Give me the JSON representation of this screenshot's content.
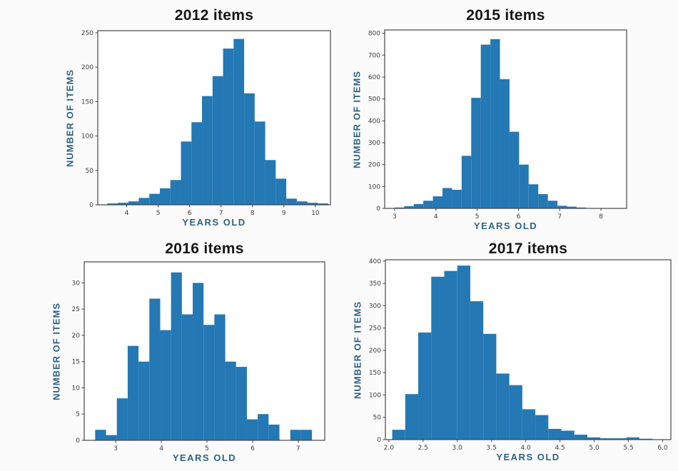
{
  "figure": {
    "layout": "2x2 grid of histograms",
    "background": "#fbfbfb"
  },
  "colors": {
    "bar_fill": "#2478b4",
    "spine": "#454545",
    "tick_label": "#3d3d3d",
    "axis_label": "#2e6285",
    "title": "#161616",
    "plot_background": "#ffffff"
  },
  "chart_data": [
    {
      "id": "2012",
      "type": "bar",
      "title": "2012 items",
      "xlabel": "YEARS OLD",
      "ylabel": "NUMBER OF ITEMS",
      "bin_start": 3.38,
      "bin_width": 0.335,
      "values": [
        2,
        3,
        5,
        10,
        16,
        24,
        36,
        92,
        120,
        158,
        187,
        227,
        241,
        162,
        121,
        65,
        38,
        9,
        5,
        3,
        2
      ],
      "xlim": [
        3.08,
        10.48
      ],
      "ylim": [
        0,
        253
      ],
      "xticks": [
        4,
        5,
        6,
        7,
        8,
        9,
        10
      ],
      "xtick_labels": [
        "4",
        "5",
        "6",
        "7",
        "8",
        "9",
        "10"
      ],
      "yticks": [
        0,
        50,
        100,
        150,
        200,
        250
      ],
      "ytick_labels": [
        "0",
        "50",
        "100",
        "150",
        "200",
        "250"
      ],
      "grid": false,
      "legend": null
    },
    {
      "id": "2015",
      "type": "bar",
      "title": "2015 items",
      "xlabel": "YEARS OLD",
      "ylabel": "NUMBER OF ITEMS",
      "bin_start": 3.0,
      "bin_width": 0.232,
      "values": [
        4,
        10,
        20,
        35,
        55,
        93,
        85,
        240,
        505,
        748,
        773,
        590,
        350,
        200,
        110,
        65,
        35,
        12,
        8,
        4
      ],
      "xlim": [
        2.76,
        8.62
      ],
      "ylim": [
        0,
        815
      ],
      "xticks": [
        3,
        4,
        5,
        6,
        7,
        8
      ],
      "xtick_labels": [
        "3",
        "4",
        "5",
        "6",
        "7",
        "8"
      ],
      "yticks": [
        0,
        100,
        200,
        300,
        400,
        500,
        600,
        700,
        800
      ],
      "ytick_labels": [
        "0",
        "100",
        "200",
        "300",
        "400",
        "500",
        "600",
        "700",
        "800"
      ],
      "grid": false,
      "legend": null
    },
    {
      "id": "2016",
      "type": "bar",
      "title": "2016 items",
      "xlabel": "YEARS OLD",
      "ylabel": "NUMBER OF ITEMS",
      "bin_start": 2.55,
      "bin_width": 0.2375,
      "values": [
        2,
        1,
        8,
        18,
        15,
        27,
        21,
        32,
        24,
        30,
        22,
        24,
        15,
        14,
        4,
        5,
        3,
        0,
        2,
        2
      ],
      "xlim": [
        2.31,
        7.58
      ],
      "ylim": [
        0,
        34
      ],
      "xticks": [
        3,
        4,
        5,
        6,
        7
      ],
      "xtick_labels": [
        "3",
        "4",
        "5",
        "6",
        "7"
      ],
      "yticks": [
        0,
        5,
        10,
        15,
        20,
        25,
        30
      ],
      "ytick_labels": [
        "0",
        "5",
        "10",
        "15",
        "20",
        "25",
        "30"
      ],
      "grid": false,
      "legend": null
    },
    {
      "id": "2017",
      "type": "bar",
      "title": "2017 items",
      "xlabel": "YEARS OLD",
      "ylabel": "NUMBER OF ITEMS",
      "bin_start": 2.05,
      "bin_width": 0.19,
      "values": [
        22,
        102,
        240,
        365,
        378,
        390,
        310,
        237,
        148,
        122,
        68,
        55,
        24,
        20,
        11,
        5,
        3,
        3,
        5,
        2
      ],
      "xlim": [
        1.95,
        6.12
      ],
      "ylim": [
        0,
        403
      ],
      "xticks": [
        2.0,
        2.5,
        3.0,
        3.5,
        4.0,
        4.5,
        5.0,
        5.5,
        6.0
      ],
      "xtick_labels": [
        "2.0",
        "2.5",
        "3.0",
        "3.5",
        "4.0",
        "4.5",
        "5.0",
        "5.5",
        "6.0"
      ],
      "yticks": [
        0,
        50,
        100,
        150,
        200,
        250,
        300,
        350,
        400
      ],
      "ytick_labels": [
        "0",
        "50",
        "100",
        "150",
        "200",
        "250",
        "300",
        "350",
        "400"
      ],
      "grid": false,
      "legend": null
    }
  ]
}
